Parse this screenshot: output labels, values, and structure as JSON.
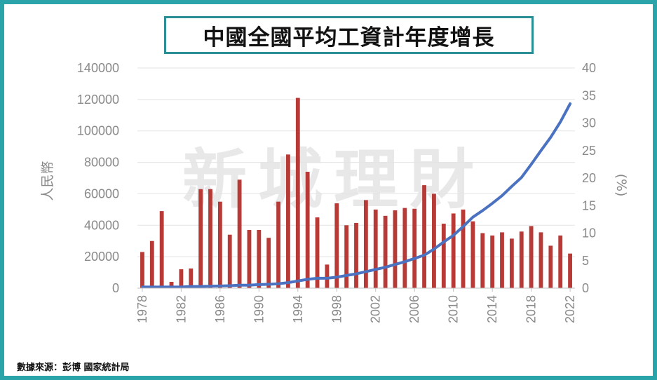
{
  "chart_data": {
    "type": "bar",
    "title": "中國全國平均工資計年度增長",
    "ylabel": "人民幣",
    "y2label": "(%)",
    "ylim": [
      0,
      140000
    ],
    "y2lim": [
      0,
      40
    ],
    "yticks": [
      "0",
      "20000",
      "40000",
      "60000",
      "80000",
      "100000",
      "120000",
      "140000"
    ],
    "y2ticks": [
      "0",
      "5",
      "10",
      "15",
      "20",
      "25",
      "30",
      "35",
      "40"
    ],
    "xticks": [
      "1978",
      "1982",
      "1986",
      "1990",
      "1994",
      "1998",
      "2002",
      "2006",
      "2010",
      "2014",
      "2018",
      "2022"
    ],
    "x": [
      1978,
      1979,
      1980,
      1981,
      1982,
      1983,
      1984,
      1985,
      1986,
      1987,
      1988,
      1989,
      1990,
      1991,
      1992,
      1993,
      1994,
      1995,
      1996,
      1997,
      1998,
      1999,
      2000,
      2001,
      2002,
      2003,
      2004,
      2005,
      2006,
      2007,
      2008,
      2009,
      2010,
      2011,
      2012,
      2013,
      2014,
      2015,
      2016,
      2017,
      2018,
      2019,
      2020,
      2021,
      2022
    ],
    "series": [
      {
        "type": "bar",
        "axis": "left",
        "color": "#b83a37",
        "values": [
          23000,
          30000,
          49000,
          4000,
          12000,
          12500,
          63000,
          63000,
          55000,
          34000,
          69000,
          37000,
          37000,
          32000,
          55000,
          85000,
          121000,
          74000,
          45000,
          15000,
          54000,
          40000,
          41500,
          56000,
          50000,
          46000,
          49500,
          51000,
          50500,
          65500,
          60000,
          41000,
          47500,
          50000,
          42500,
          35000,
          33500,
          35500,
          31500,
          36000,
          39500,
          35500,
          27000,
          33500,
          22000
        ]
      },
      {
        "type": "line",
        "axis": "right",
        "color": "#4a72c0",
        "values": [
          0.2,
          0.2,
          0.2,
          0.2,
          0.2,
          0.3,
          0.3,
          0.35,
          0.4,
          0.45,
          0.55,
          0.55,
          0.65,
          0.7,
          0.8,
          1.0,
          1.3,
          1.6,
          1.8,
          1.8,
          2.0,
          2.3,
          2.6,
          3.0,
          3.4,
          3.8,
          4.3,
          4.8,
          5.4,
          6.0,
          7.1,
          8.4,
          9.6,
          11.2,
          12.9,
          14.1,
          15.4,
          16.8,
          18.5,
          20.1,
          22.5,
          25.0,
          27.4,
          30.2,
          33.5
        ]
      }
    ],
    "grid": true,
    "watermark": "新城理財"
  },
  "source_note": "數據來源：彭博 國家統計局"
}
